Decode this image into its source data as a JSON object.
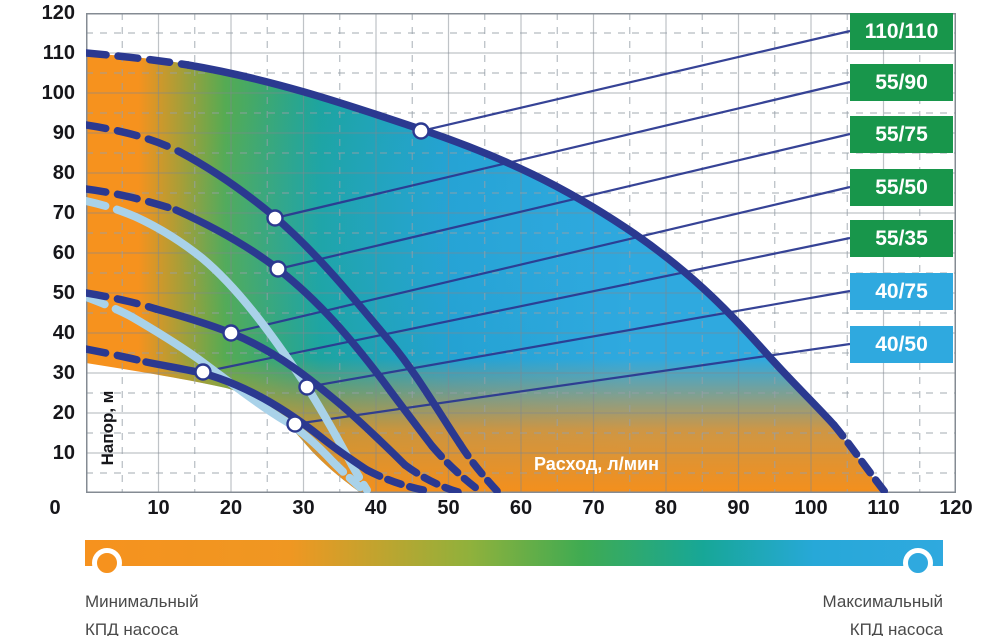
{
  "axes": {
    "x_label": "Расход, л/мин",
    "y_label": "Напор, м",
    "x_ticks": [
      "0",
      "10",
      "20",
      "30",
      "40",
      "50",
      "60",
      "70",
      "80",
      "90",
      "100",
      "110",
      "120"
    ],
    "y_ticks": [
      "120",
      "110",
      "100",
      "90",
      "80",
      "70",
      "60",
      "50",
      "40",
      "30",
      "20",
      "10"
    ]
  },
  "badges": [
    {
      "label": "110/110",
      "color": "#18964B"
    },
    {
      "label": "55/90",
      "color": "#18964B"
    },
    {
      "label": "55/75",
      "color": "#18964B"
    },
    {
      "label": "55/50",
      "color": "#18964B"
    },
    {
      "label": "55/35",
      "color": "#18964B"
    },
    {
      "label": "40/75",
      "color": "#2FA9DF"
    },
    {
      "label": "40/50",
      "color": "#2FA9DF"
    }
  ],
  "legend": {
    "min_line1": "Минимальный",
    "min_line2": "КПД насоса",
    "max_line1": "Максимальный",
    "max_line2": "КПД насоса",
    "min_color": "#F6921E",
    "max_color": "#2FA9DF"
  },
  "colors": {
    "curve_navy": "#2B3990",
    "curve_light_blue": "#A9D2E9",
    "efficiency_low": "#F6921E",
    "efficiency_mid": "#3FAB52",
    "efficiency_high": "#2FA9DF",
    "badge_green": "#18964B",
    "badge_blue": "#2FA9DF"
  },
  "chart_data": {
    "type": "line",
    "xlabel": "Расход, л/мин",
    "ylabel": "Напор, м",
    "xlim": [
      0,
      120
    ],
    "ylim": [
      0,
      120
    ],
    "x_tick_step": 10,
    "y_tick_step": 10,
    "grid": "solid lines every 10 units, dashed lines every 5 units",
    "legend_position": "badges at right edge, linked by thin lines to duty points",
    "series": [
      {
        "name": "110/110",
        "color": "#2B3990",
        "style": "thick, dashed at both ends",
        "points": [
          [
            0,
            110
          ],
          [
            10,
            107.5
          ],
          [
            20,
            104
          ],
          [
            30,
            99.5
          ],
          [
            46,
            91
          ],
          [
            60,
            83
          ],
          [
            70,
            72
          ],
          [
            80,
            60
          ],
          [
            90,
            44
          ],
          [
            100,
            24
          ],
          [
            105,
            13
          ],
          [
            110,
            0
          ]
        ],
        "duty_point": [
          46,
          91
        ]
      },
      {
        "name": "55/90",
        "color": "#2B3990",
        "style": "thick, dashed at both ends",
        "points": [
          [
            0,
            92
          ],
          [
            10,
            88
          ],
          [
            16,
            82
          ],
          [
            26,
            69
          ],
          [
            34,
            55
          ],
          [
            42,
            38
          ],
          [
            48,
            22
          ],
          [
            53,
            8
          ],
          [
            56.5,
            0
          ]
        ],
        "duty_point": [
          26,
          69
        ]
      },
      {
        "name": "55/75",
        "color": "#2B3990",
        "style": "thick, dashed at both ends",
        "points": [
          [
            0,
            76
          ],
          [
            10,
            72
          ],
          [
            18,
            65
          ],
          [
            26.5,
            56
          ],
          [
            34,
            43
          ],
          [
            41,
            28
          ],
          [
            47,
            13
          ],
          [
            52,
            2
          ]
        ],
        "duty_point": [
          26.5,
          56
        ]
      },
      {
        "name": "55/50",
        "color": "#2B3990",
        "style": "thick, dashed at both ends",
        "points": [
          [
            0,
            50
          ],
          [
            8,
            47
          ],
          [
            14,
            44
          ],
          [
            20,
            40
          ],
          [
            27,
            33
          ],
          [
            34,
            24
          ],
          [
            41,
            13
          ],
          [
            47,
            4
          ],
          [
            50,
            0
          ]
        ],
        "duty_point": [
          20,
          40
        ]
      },
      {
        "name": "55/35",
        "color": "#2B3990",
        "style": "thick, dashed at both ends",
        "points": [
          [
            0,
            36
          ],
          [
            8,
            33
          ],
          [
            16,
            30
          ],
          [
            24,
            23
          ],
          [
            31,
            15
          ],
          [
            38,
            7
          ],
          [
            45,
            1
          ]
        ],
        "duty_point": [
          16,
          30
        ]
      },
      {
        "name": "40/75",
        "color": "#A9D2E9",
        "style": "thick light-blue, dashed at both ends",
        "points": [
          [
            0,
            73
          ],
          [
            8,
            68
          ],
          [
            14,
            61
          ],
          [
            20,
            50
          ],
          [
            25,
            39
          ],
          [
            30.5,
            26.5
          ],
          [
            34,
            16
          ],
          [
            38,
            1
          ]
        ],
        "duty_point": [
          30.5,
          26.5
        ]
      },
      {
        "name": "40/50",
        "color": "#A9D2E9",
        "style": "thick light-blue, dashed at both ends",
        "points": [
          [
            0,
            49
          ],
          [
            8,
            43
          ],
          [
            14,
            36
          ],
          [
            20,
            28
          ],
          [
            25,
            21
          ],
          [
            29,
            17
          ],
          [
            34,
            8
          ],
          [
            38.5,
            0
          ]
        ],
        "duty_point": [
          29,
          17
        ]
      }
    ],
    "efficiency_field": {
      "description": "operating envelope shaded by pump efficiency",
      "low_color": "#F6921E",
      "mid_color": "#3FAB52",
      "high_color": "#2FA9DF",
      "min_label": "Минимальный КПД насоса",
      "max_label": "Максимальный КПД насоса"
    }
  }
}
